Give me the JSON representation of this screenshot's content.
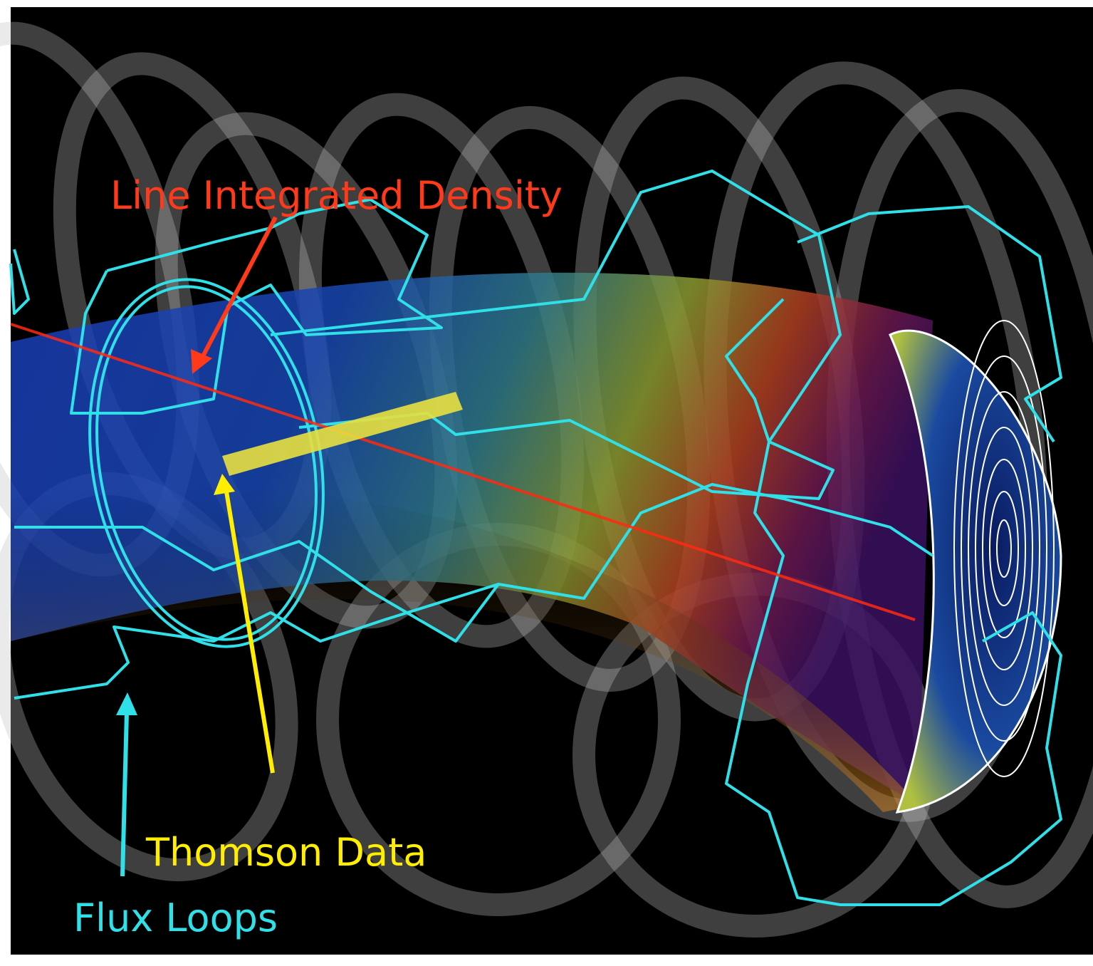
{
  "labels": {
    "line_integrated_density": "Line Integrated Density",
    "thomson_data": "Thomson Data",
    "flux_loops": "Flux Loops"
  }
}
